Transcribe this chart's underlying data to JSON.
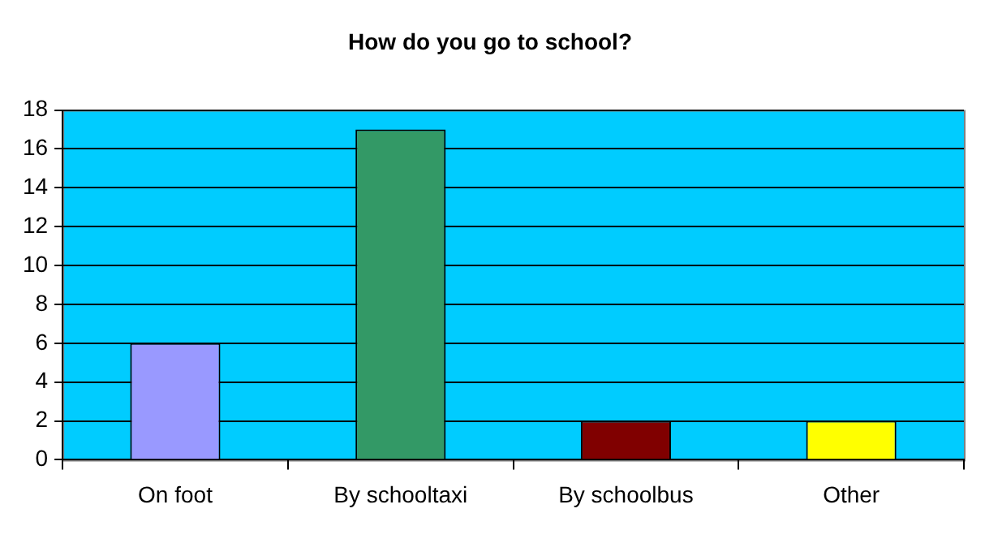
{
  "chart_data": {
    "type": "bar",
    "title": "How do you go to school?",
    "categories": [
      "On foot",
      "By schooltaxi",
      "By schoolbus",
      "Other"
    ],
    "values": [
      6,
      17,
      2,
      2
    ],
    "colors": [
      "#9999ff",
      "#339966",
      "#800000",
      "#ffff00"
    ],
    "ylim": [
      0,
      18
    ],
    "yticks": [
      0,
      2,
      4,
      6,
      8,
      10,
      12,
      14,
      16,
      18
    ],
    "grid": "y",
    "legend": false
  }
}
